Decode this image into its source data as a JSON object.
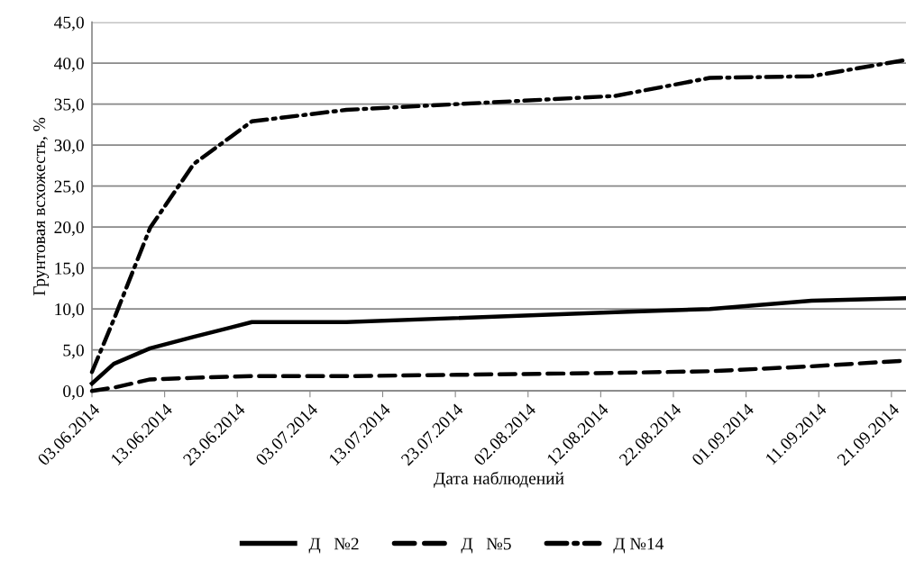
{
  "chart_data": {
    "type": "line",
    "xlabel": "Дата наблюдений",
    "ylabel": "Грунтовая всхожесть, %",
    "x": [
      "2014-06-03",
      "2014-06-06",
      "2014-06-11",
      "2014-06-17",
      "2014-06-25",
      "2014-07-08",
      "2014-08-14",
      "2014-08-27",
      "2014-09-10",
      "2014-09-23"
    ],
    "series": [
      {
        "name": "Д   №2",
        "color": "#000000",
        "line_style": "solid",
        "values": [
          0.9,
          3.3,
          5.2,
          6.6,
          8.4,
          8.4,
          9.6,
          10.0,
          11.0,
          11.3
        ]
      },
      {
        "name": "Д   №5",
        "color": "#000000",
        "line_style": "dashed",
        "values": [
          0.0,
          0.4,
          1.4,
          1.6,
          1.8,
          1.8,
          2.2,
          2.4,
          3.0,
          3.7
        ]
      },
      {
        "name": "Д №14",
        "color": "#000000",
        "line_style": "dashdot",
        "values": [
          2.3,
          8.7,
          19.9,
          27.7,
          32.9,
          34.3,
          36.0,
          38.2,
          38.4,
          40.4
        ]
      }
    ],
    "xlim": [
      "2014-06-03",
      "2014-09-23"
    ],
    "xticks": [
      {
        "value": "2014-06-03",
        "label": "03.06.2014"
      },
      {
        "value": "2014-06-13",
        "label": "13.06.2014"
      },
      {
        "value": "2014-06-23",
        "label": "23.06.2014"
      },
      {
        "value": "2014-07-03",
        "label": "03.07.2014"
      },
      {
        "value": "2014-07-13",
        "label": "13.07.2014"
      },
      {
        "value": "2014-07-23",
        "label": "23.07.2014"
      },
      {
        "value": "2014-08-02",
        "label": "02.08.2014"
      },
      {
        "value": "2014-08-12",
        "label": "12.08.2014"
      },
      {
        "value": "2014-08-22",
        "label": "22.08.2014"
      },
      {
        "value": "2014-09-01",
        "label": "01.09.2014"
      },
      {
        "value": "2014-09-11",
        "label": "11.09.2014"
      },
      {
        "value": "2014-09-21",
        "label": "21.09.2014"
      }
    ],
    "ylim": [
      0,
      45
    ],
    "yticks": [
      {
        "value": 0,
        "label": "0,0"
      },
      {
        "value": 5,
        "label": "5,0"
      },
      {
        "value": 10,
        "label": "10,0"
      },
      {
        "value": 15,
        "label": "15,0"
      },
      {
        "value": 20,
        "label": "20,0"
      },
      {
        "value": 25,
        "label": "25,0"
      },
      {
        "value": 30,
        "label": "30,0"
      },
      {
        "value": 35,
        "label": "35,0"
      },
      {
        "value": 40,
        "label": "40,0"
      },
      {
        "value": 45,
        "label": "45,0"
      }
    ],
    "grid": "y",
    "legend": "bottom",
    "marker": "none"
  }
}
